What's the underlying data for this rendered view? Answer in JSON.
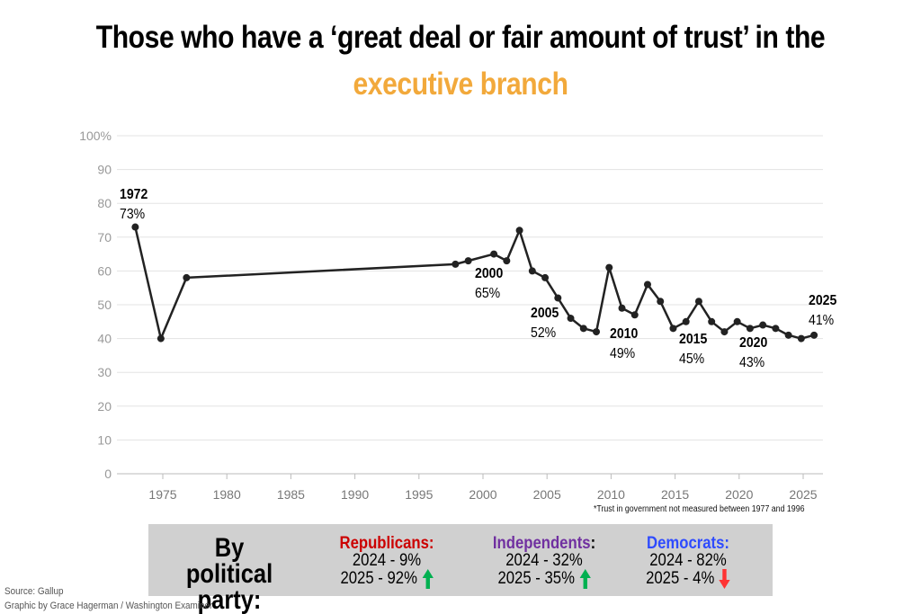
{
  "title_line1": "Those who have a ‘great deal or fair amount of trust’ in the",
  "title_line2": "executive branch",
  "colors": {
    "accent": "#f2a93b",
    "line": "#222222",
    "grid": "#e3e3e3",
    "republican": "#cc0000",
    "independent": "#7030a0",
    "democrat": "#2e4bff",
    "up": "#00b050",
    "down": "#ff3333",
    "panel": "#d0d0d0"
  },
  "chart_data": {
    "type": "line",
    "x": [
      1972,
      1974,
      1976,
      1997,
      1998,
      2000,
      2001,
      2002,
      2003,
      2004,
      2005,
      2006,
      2007,
      2008,
      2009,
      2010,
      2011,
      2012,
      2013,
      2014,
      2015,
      2016,
      2017,
      2018,
      2019,
      2020,
      2021,
      2022,
      2023,
      2024,
      2025
    ],
    "values": [
      73,
      40,
      58,
      62,
      63,
      65,
      63,
      72,
      60,
      58,
      52,
      46,
      43,
      42,
      61,
      49,
      47,
      56,
      51,
      43,
      45,
      51,
      45,
      42,
      45,
      43,
      44,
      43,
      41,
      40,
      41
    ],
    "ylim": [
      0,
      100
    ],
    "yticks": [
      "0",
      "10",
      "20",
      "30",
      "40",
      "50",
      "60",
      "70",
      "80",
      "90",
      "100%"
    ],
    "xticks": [
      "1975",
      "1980",
      "1985",
      "1990",
      "1995",
      "2000",
      "2005",
      "2010",
      "2015",
      "2020",
      "2025"
    ],
    "grid": true,
    "annotations": [
      {
        "year": "1972",
        "value": "73%"
      },
      {
        "year": "2000",
        "value": "65%"
      },
      {
        "year": "2005",
        "value": "52%"
      },
      {
        "year": "2010",
        "value": "49%"
      },
      {
        "year": "2015",
        "value": "45%"
      },
      {
        "year": "2020",
        "value": "43%"
      },
      {
        "year": "2025",
        "value": "41%"
      }
    ],
    "footnote": "*Trust in government not measured between 1977 and 1996"
  },
  "party_panel": {
    "title": "By political party:",
    "parties": [
      {
        "name": "Republicans:",
        "line2024": "2024 - 9%",
        "line2025": "2025 - 92%",
        "trend": "up"
      },
      {
        "name": "Independents",
        "name_suffix": ":",
        "line2024": "2024 - 32%",
        "line2025": "2025 - 35%",
        "trend": "up"
      },
      {
        "name": "Democrats:",
        "line2024": "2024 - 82%",
        "line2025": "2025 - 4%",
        "trend": "down"
      }
    ]
  },
  "source": "Source: Gallup",
  "credit": "Graphic by Grace Hagerman / Washington Examiner"
}
